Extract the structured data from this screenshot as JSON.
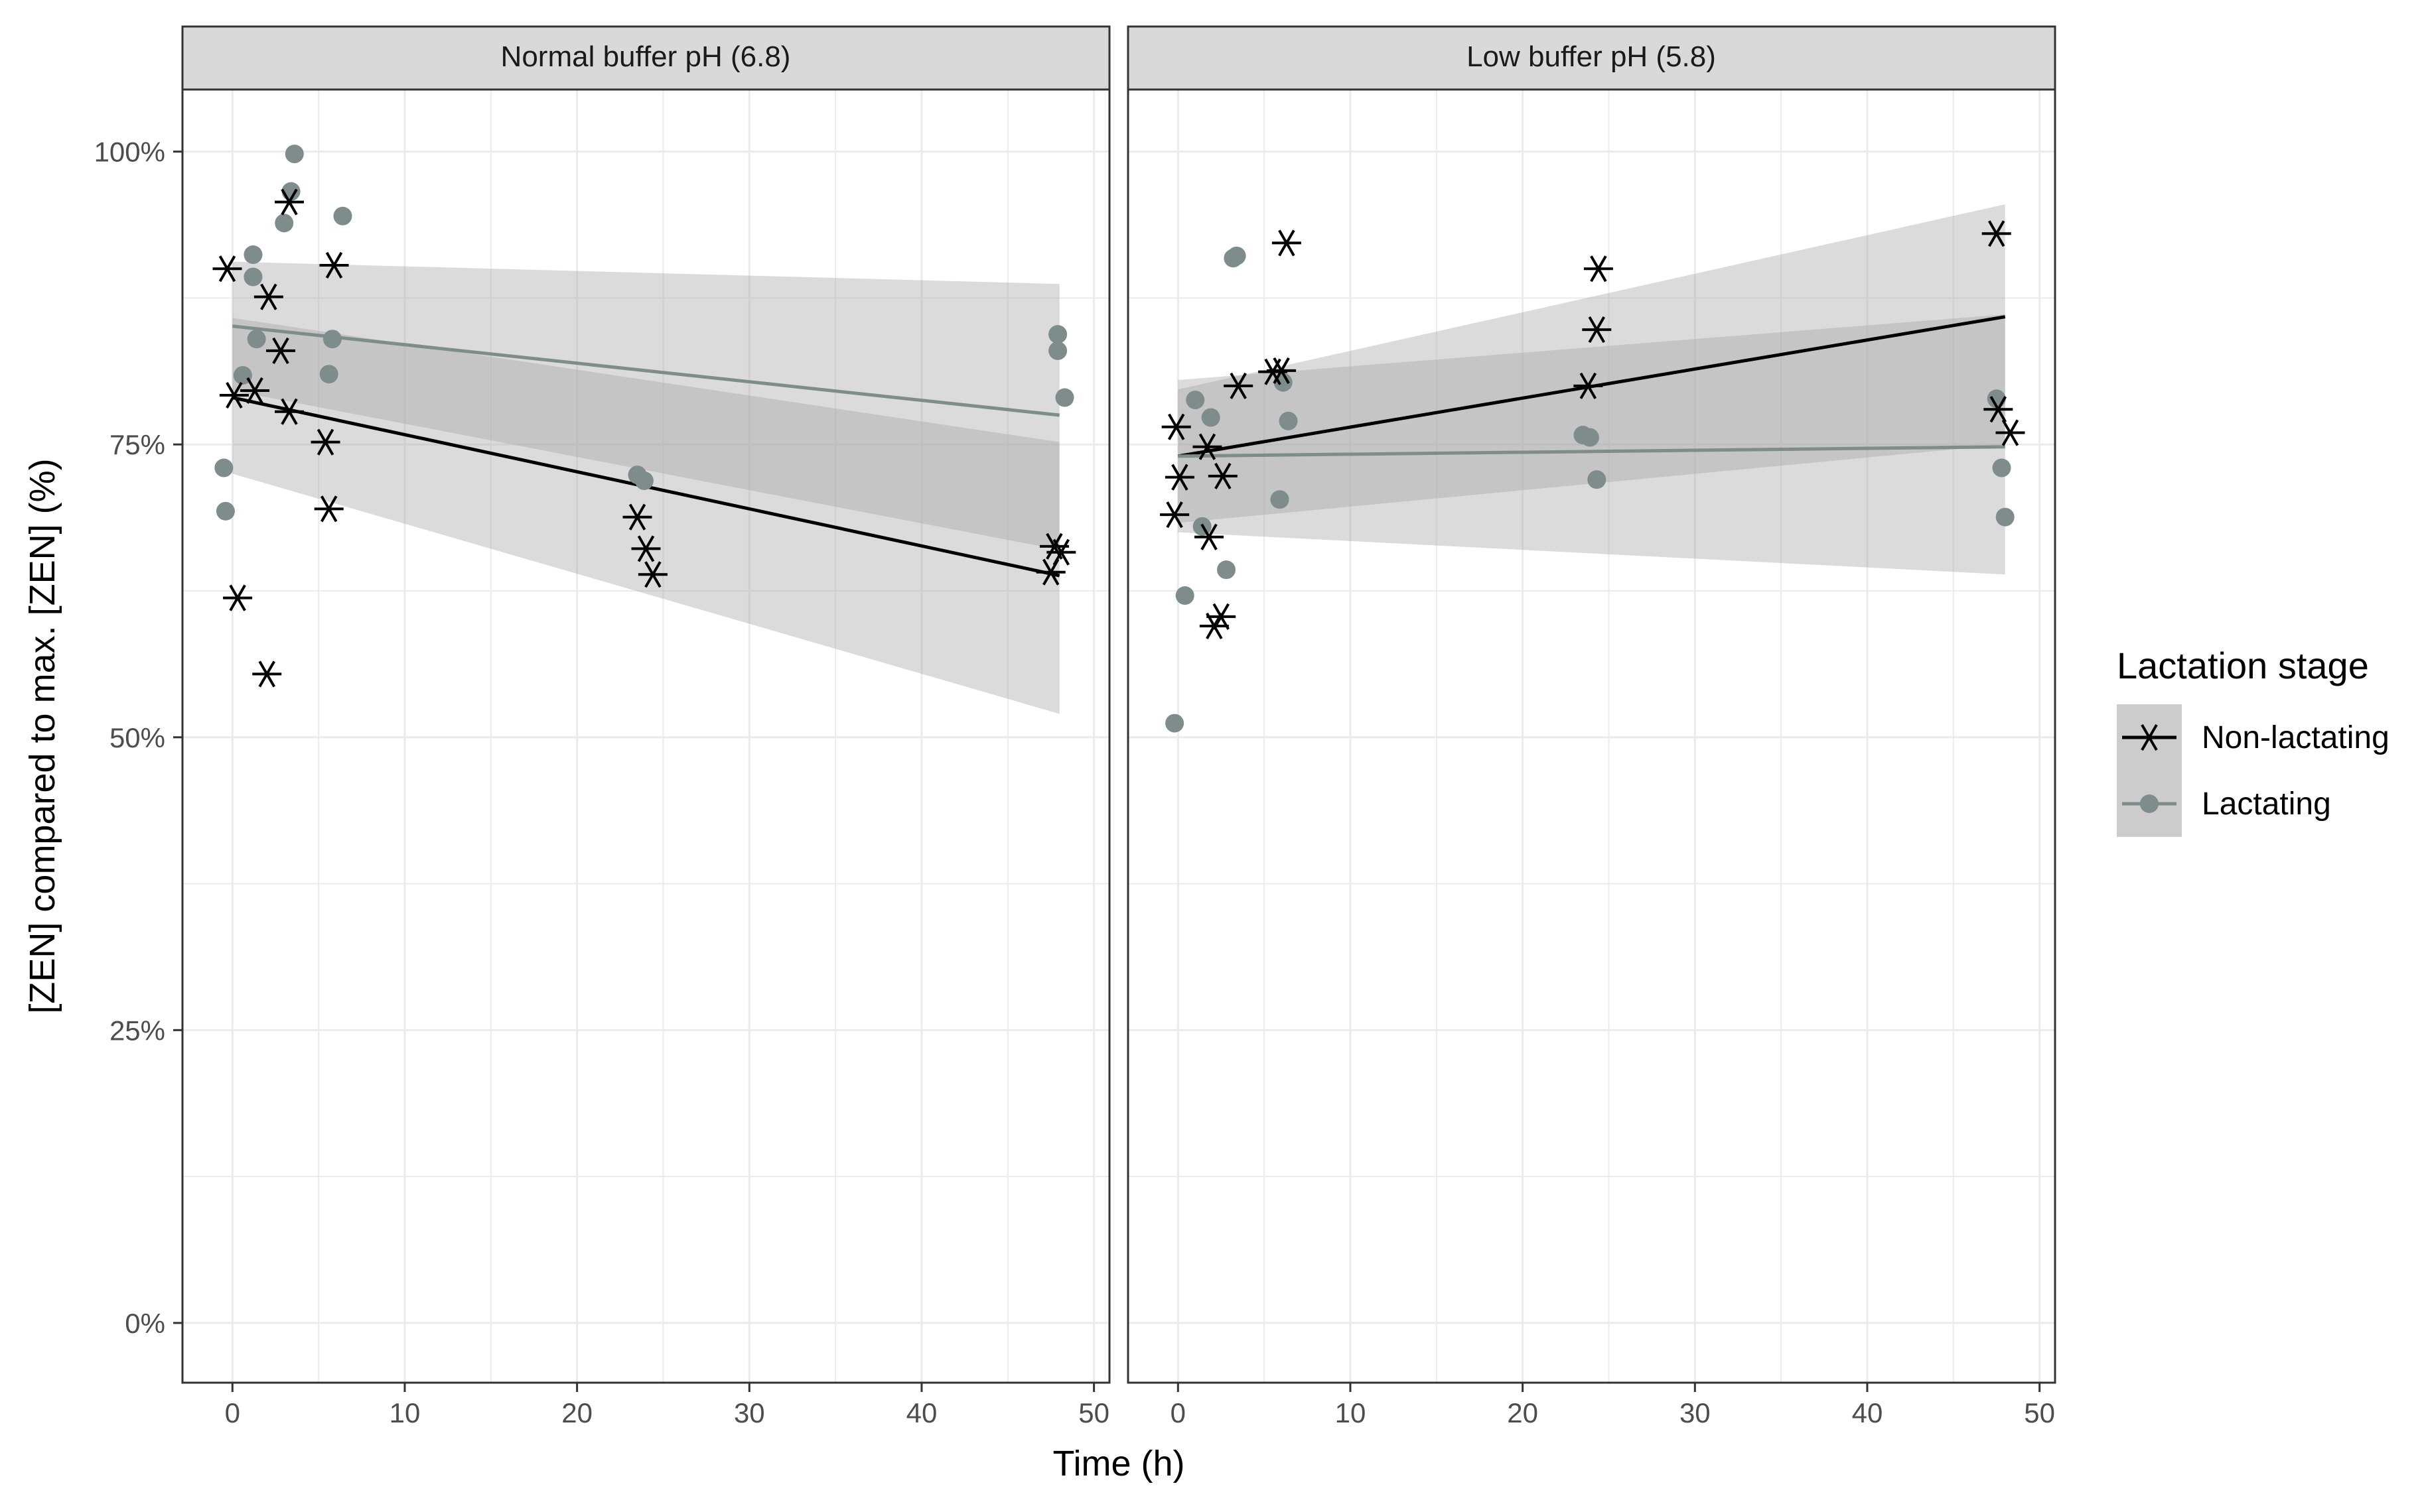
{
  "chart_data": {
    "type": "scatter",
    "y_axis_label": "[ZEN] compared to max. [ZEN] (%)",
    "x_axis_label": "Time (h)",
    "y_ticks": [
      0,
      25,
      50,
      75,
      100
    ],
    "y_tick_labels": [
      "0%",
      "25%",
      "50%",
      "75%",
      "100%"
    ],
    "x_ticks": [
      0,
      10,
      20,
      30,
      40,
      50
    ],
    "x_tick_labels": [
      "0",
      "10",
      "20",
      "30",
      "40",
      "50"
    ],
    "xlim": [
      -2.9,
      50.9
    ],
    "ylim": [
      -5.1,
      105.3
    ],
    "grid": true,
    "legend": {
      "title": "Lactation stage",
      "position": "right",
      "entries": [
        "Non-lactating",
        "Lactating"
      ]
    },
    "colors": {
      "non_lactating": "#000000",
      "lactating": "#7f8c8c",
      "ribbon": "#a6a6a6",
      "strip_fill": "#d9d9d9",
      "grid": "#ebebeb",
      "axis_text": "#4d4d4d"
    },
    "panels": [
      {
        "title": "Normal buffer pH (6.8)",
        "series": [
          {
            "name": "Non-lactating",
            "marker": "asterisk",
            "points": [
              [
                -0.3,
                90.0
              ],
              [
                0.1,
                79.2
              ],
              [
                0.3,
                61.9
              ],
              [
                1.3,
                79.6
              ],
              [
                2.0,
                55.4
              ],
              [
                2.1,
                87.6
              ],
              [
                2.8,
                83.0
              ],
              [
                3.3,
                77.8
              ],
              [
                3.3,
                95.7
              ],
              [
                5.4,
                75.2
              ],
              [
                5.6,
                69.5
              ],
              [
                5.9,
                90.3
              ],
              [
                23.5,
                68.8
              ],
              [
                24.0,
                66.1
              ],
              [
                24.4,
                63.9
              ],
              [
                47.5,
                64.1
              ],
              [
                47.7,
                66.3
              ],
              [
                48.1,
                65.8
              ]
            ],
            "fit": {
              "x": [
                0,
                48
              ],
              "y": [
                79.0,
                63.8
              ]
            },
            "ci": {
              "x": [
                0,
                48
              ],
              "lower": [
                72.5,
                52.0
              ],
              "upper": [
                85.8,
                75.2
              ]
            }
          },
          {
            "name": "Lactating",
            "marker": "circle",
            "points": [
              [
                -0.5,
                73.0
              ],
              [
                -0.4,
                69.3
              ],
              [
                0.6,
                80.9
              ],
              [
                1.2,
                91.2
              ],
              [
                1.2,
                89.3
              ],
              [
                1.4,
                84.0
              ],
              [
                3.0,
                93.9
              ],
              [
                3.4,
                96.6
              ],
              [
                3.6,
                99.8
              ],
              [
                5.6,
                81.0
              ],
              [
                5.8,
                84.0
              ],
              [
                6.4,
                94.5
              ],
              [
                23.5,
                72.4
              ],
              [
                23.9,
                71.9
              ],
              [
                47.9,
                84.4
              ],
              [
                47.9,
                83.0
              ],
              [
                48.3,
                79.0
              ]
            ],
            "fit": {
              "x": [
                0,
                48
              ],
              "y": [
                85.1,
                77.5
              ]
            },
            "ci": {
              "x": [
                0,
                48
              ],
              "lower": [
                79.6,
                66.0
              ],
              "upper": [
                90.6,
                88.7
              ]
            }
          }
        ]
      },
      {
        "title": "Low buffer pH (5.8)",
        "series": [
          {
            "name": "Non-lactating",
            "marker": "asterisk",
            "points": [
              [
                -0.2,
                69.0
              ],
              [
                -0.1,
                76.5
              ],
              [
                0.1,
                72.2
              ],
              [
                1.7,
                74.8
              ],
              [
                1.8,
                67.1
              ],
              [
                2.1,
                59.5
              ],
              [
                2.5,
                60.3
              ],
              [
                2.6,
                72.3
              ],
              [
                3.5,
                80.0
              ],
              [
                5.5,
                81.2
              ],
              [
                6.0,
                81.3
              ],
              [
                6.3,
                92.2
              ],
              [
                23.8,
                80.0
              ],
              [
                24.3,
                84.8
              ],
              [
                24.4,
                90.0
              ],
              [
                47.5,
                93.0
              ],
              [
                47.6,
                78.0
              ],
              [
                48.3,
                76.0
              ]
            ],
            "fit": {
              "x": [
                0,
                48
              ],
              "y": [
                74.0,
                85.9
              ]
            },
            "ci": {
              "x": [
                0,
                48
              ],
              "lower": [
                68.3,
                75.0
              ],
              "upper": [
                79.7,
                95.5
              ]
            }
          },
          {
            "name": "Lactating",
            "marker": "circle",
            "points": [
              [
                -0.2,
                51.2
              ],
              [
                0.4,
                62.1
              ],
              [
                1.0,
                78.8
              ],
              [
                1.4,
                68.0
              ],
              [
                1.9,
                77.3
              ],
              [
                2.8,
                64.3
              ],
              [
                3.2,
                90.9
              ],
              [
                3.4,
                91.1
              ],
              [
                5.9,
                70.3
              ],
              [
                6.1,
                80.3
              ],
              [
                6.4,
                77.0
              ],
              [
                23.5,
                75.8
              ],
              [
                23.9,
                75.6
              ],
              [
                24.3,
                72.0
              ],
              [
                47.5,
                78.9
              ],
              [
                47.8,
                73.0
              ],
              [
                48.0,
                68.8
              ]
            ],
            "fit": {
              "x": [
                0,
                48
              ],
              "y": [
                74.0,
                74.8
              ]
            },
            "ci": {
              "x": [
                0,
                48
              ],
              "lower": [
                67.5,
                63.9
              ],
              "upper": [
                80.5,
                86.1
              ]
            }
          }
        ]
      }
    ]
  }
}
